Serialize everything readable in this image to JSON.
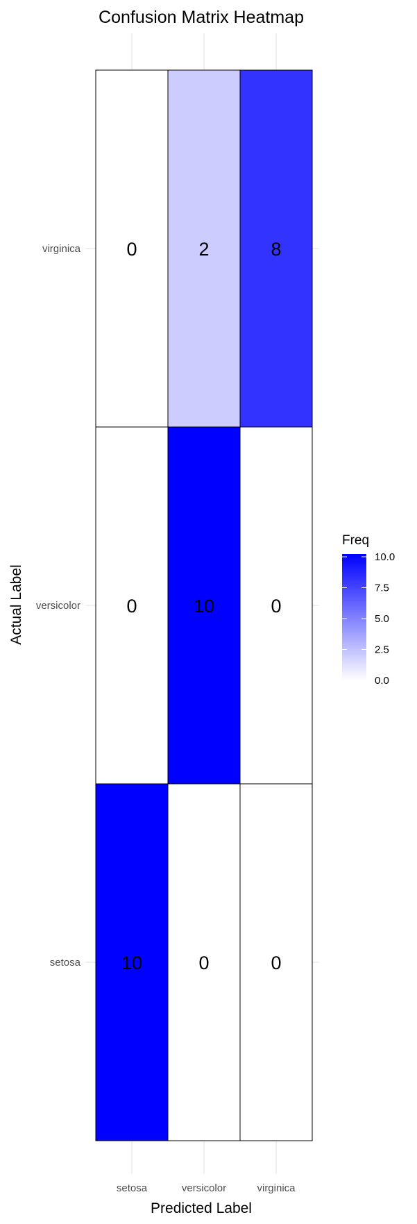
{
  "chart_data": {
    "type": "heatmap",
    "title": "Confusion Matrix Heatmap",
    "xlabel": "Predicted Label",
    "ylabel": "Actual Label",
    "x_categories": [
      "setosa",
      "versicolor",
      "virginica"
    ],
    "y_categories": [
      "setosa",
      "versicolor",
      "virginica"
    ],
    "cells": [
      {
        "actual": "virginica",
        "predicted": "setosa",
        "value": 0
      },
      {
        "actual": "virginica",
        "predicted": "versicolor",
        "value": 2
      },
      {
        "actual": "virginica",
        "predicted": "virginica",
        "value": 8
      },
      {
        "actual": "versicolor",
        "predicted": "setosa",
        "value": 0
      },
      {
        "actual": "versicolor",
        "predicted": "versicolor",
        "value": 10
      },
      {
        "actual": "versicolor",
        "predicted": "virginica",
        "value": 0
      },
      {
        "actual": "setosa",
        "predicted": "setosa",
        "value": 10
      },
      {
        "actual": "setosa",
        "predicted": "versicolor",
        "value": 0
      },
      {
        "actual": "setosa",
        "predicted": "virginica",
        "value": 0
      }
    ],
    "color_low": "#ffffff",
    "color_high": "#0000ff",
    "value_range": [
      0,
      10
    ],
    "legend": {
      "title": "Freq",
      "ticks": [
        "0.0",
        "2.5",
        "5.0",
        "7.5",
        "10.0"
      ],
      "tick_values": [
        0,
        2.5,
        5,
        7.5,
        10
      ],
      "placement": "right"
    },
    "grid": true
  }
}
